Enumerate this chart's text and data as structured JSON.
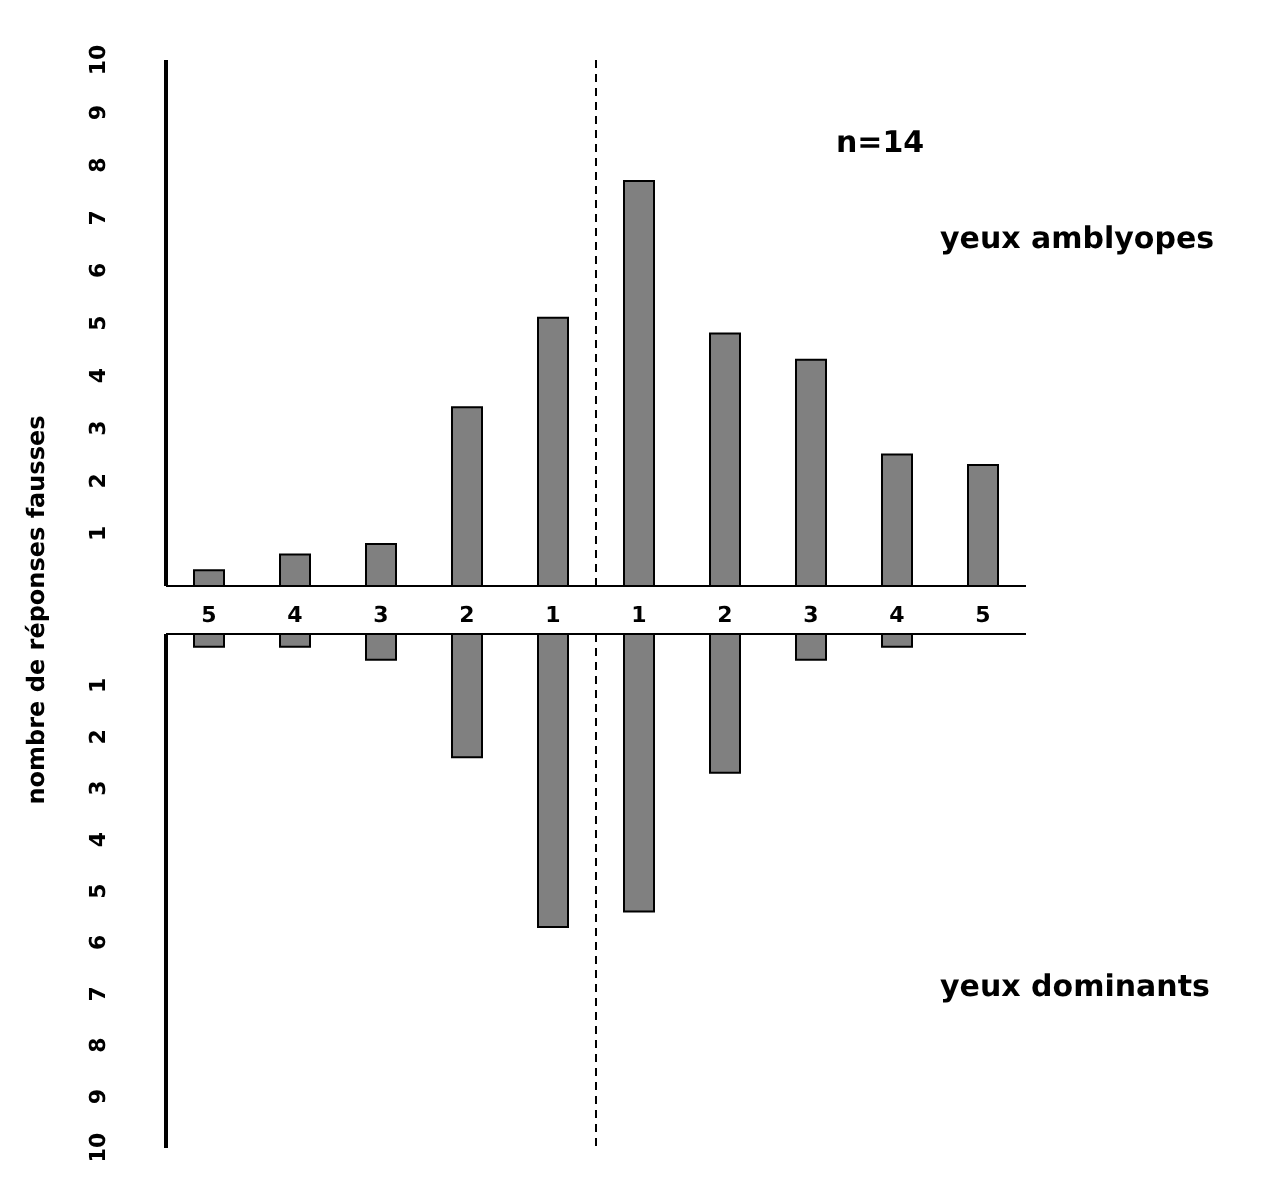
{
  "chart_data": [
    {
      "type": "bar",
      "ylabel": "nombre de réponses fausses",
      "annotations": [
        "n=14"
      ],
      "categories": [
        "5",
        "4",
        "3",
        "2",
        "1",
        "1",
        "2",
        "3",
        "4",
        "5"
      ],
      "series": [
        {
          "name": "yeux amblyopes",
          "color": "#808080",
          "values": [
            0.3,
            0.6,
            0.8,
            3.4,
            5.1,
            7.7,
            4.8,
            4.3,
            2.5,
            2.3
          ]
        }
      ],
      "ylim": [
        0,
        10
      ],
      "yticks": [
        1,
        2,
        3,
        4,
        5,
        6,
        7,
        8,
        9,
        10
      ],
      "tick_labels": "y"
    },
    {
      "type": "bar",
      "categories": [
        "5",
        "4",
        "3",
        "2",
        "1",
        "1",
        "2",
        "3",
        "4",
        "5"
      ],
      "series": [
        {
          "name": "yeux dominants",
          "color": "#808080",
          "values": [
            0.25,
            0.25,
            0.5,
            2.4,
            5.7,
            5.4,
            2.7,
            0.5,
            0.25,
            0
          ]
        }
      ],
      "ylim": [
        10,
        0
      ],
      "yticks": [
        1,
        2,
        3,
        4,
        5,
        6,
        7,
        8,
        9,
        10
      ]
    }
  ]
}
